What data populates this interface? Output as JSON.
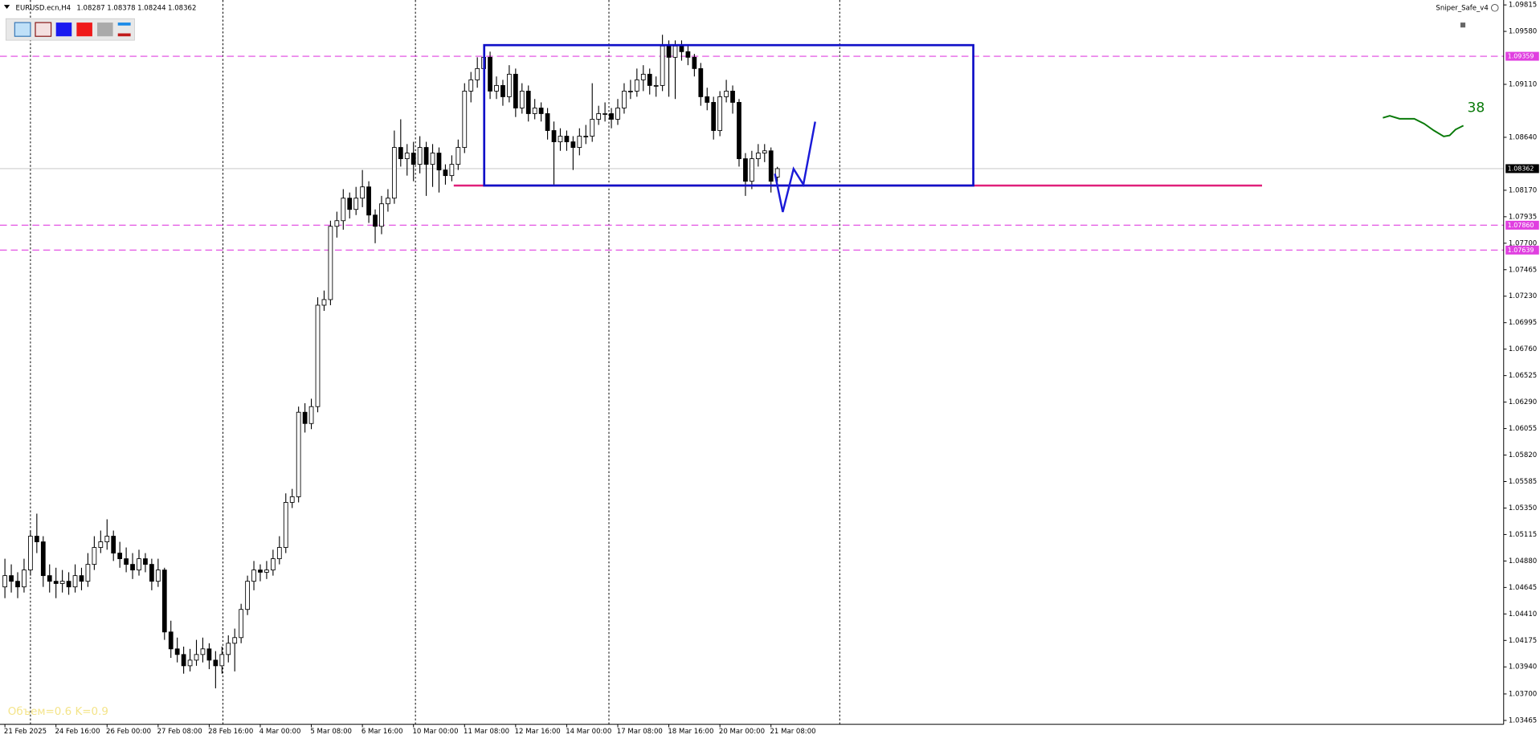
{
  "chart_data": {
    "type": "candlestick",
    "title": "EURUSD.ecn,H4",
    "indicator_name": "Sniper_Safe_v4",
    "indicator_value": 38,
    "annotation": "Объем=0.6 K=0.9",
    "ylim": [
      1.03465,
      1.09815
    ],
    "yticks": [
      1.09815,
      {
        "value": 1.0958,
        "label": "1.09580"
      },
      {
        "value": 1.0911,
        "label": "1.09110"
      },
      {
        "value": 1.0864,
        "label": "1.08640"
      },
      {
        "value": 1.0817,
        "label": "1.08170"
      },
      1.07935,
      {
        "value": 1.077,
        "label": "1.07700"
      },
      1.07465,
      {
        "value": 1.0723,
        "label": "1.07230"
      },
      1.06995,
      {
        "value": 1.0676,
        "label": "1.06760"
      },
      1.06525,
      {
        "value": 1.0629,
        "label": "1.06290"
      },
      1.06055,
      {
        "value": 1.0582,
        "label": "1.05820"
      },
      1.05585,
      {
        "value": 1.0535,
        "label": "1.05350"
      },
      1.05115,
      {
        "value": 1.0488,
        "label": "1.04880"
      },
      1.04645,
      {
        "value": 1.0441,
        "label": "1.04410"
      },
      1.04175,
      {
        "value": 1.0394,
        "label": "1.03940"
      },
      {
        "value": 1.037,
        "label": "1.03700"
      },
      1.03465
    ],
    "xticks": [
      {
        "value": 0,
        "label": "21 Feb 2025"
      },
      {
        "value": 8,
        "label": "24 Feb 16:00"
      },
      {
        "value": 16,
        "label": "26 Feb 00:00"
      },
      {
        "value": 24,
        "label": "27 Feb 08:00"
      },
      {
        "value": 32,
        "label": "28 Feb 16:00"
      },
      {
        "value": 40,
        "label": "4 Mar 00:00"
      },
      {
        "value": 48,
        "label": "5 Mar 08:00"
      },
      {
        "value": 56,
        "label": "6 Mar 16:00"
      },
      {
        "value": 64,
        "label": "10 Mar 00:00"
      },
      {
        "value": 72,
        "label": "11 Mar 08:00"
      },
      {
        "value": 80,
        "label": "12 Mar 16:00"
      },
      {
        "value": 88,
        "label": "14 Mar 00:00"
      },
      {
        "value": 96,
        "label": "17 Mar 08:00"
      },
      {
        "value": 104,
        "label": "18 Mar 16:00"
      },
      {
        "value": 112,
        "label": "20 Mar 00:00"
      },
      {
        "value": 120,
        "label": "21 Mar 08:00"
      }
    ],
    "levels": [
      1.09359,
      {
        "value": 1.0786,
        "label": "1.07860"
      },
      1.07639
    ],
    "level_color": "#e040e0",
    "current_price": 1.08362,
    "zone": {
      "top": 1.09458,
      "bottom": 1.08212,
      "color": "#1010c8",
      "line_color": "#e0207a"
    },
    "ohlc": [
      [
        1.0465,
        1.049,
        1.0455,
        1.0475
      ],
      [
        1.0475,
        1.0485,
        1.046,
        1.047
      ],
      [
        1.047,
        1.0478,
        1.0455,
        1.0465
      ],
      [
        1.0465,
        1.049,
        1.046,
        1.048
      ],
      [
        1.048,
        1.0515,
        1.0475,
        1.051
      ],
      [
        1.051,
        1.053,
        1.0495,
        1.0505
      ],
      [
        1.0505,
        1.051,
        1.0465,
        1.0475
      ],
      [
        1.0475,
        1.0485,
        1.046,
        1.047
      ],
      [
        1.047,
        1.0482,
        1.0455,
        1.0468
      ],
      [
        1.0468,
        1.048,
        1.046,
        1.047
      ],
      [
        1.047,
        1.0478,
        1.0458,
        1.0465
      ],
      [
        1.0465,
        1.0485,
        1.046,
        1.0475
      ],
      [
        1.0475,
        1.0482,
        1.0462,
        1.047
      ],
      [
        1.047,
        1.0495,
        1.0465,
        1.0485
      ],
      [
        1.0485,
        1.051,
        1.048,
        1.05
      ],
      [
        1.05,
        1.0515,
        1.0495,
        1.0505
      ],
      [
        1.0505,
        1.0525,
        1.0498,
        1.051
      ],
      [
        1.051,
        1.0515,
        1.0488,
        1.0495
      ],
      [
        1.0495,
        1.0505,
        1.0482,
        1.049
      ],
      [
        1.049,
        1.05,
        1.0478,
        1.0485
      ],
      [
        1.0485,
        1.0495,
        1.0472,
        1.048
      ],
      [
        1.048,
        1.0498,
        1.0475,
        1.049
      ],
      [
        1.049,
        1.0495,
        1.0478,
        1.0485
      ],
      [
        1.0485,
        1.049,
        1.0462,
        1.047
      ],
      [
        1.047,
        1.049,
        1.0465,
        1.048
      ],
      [
        1.048,
        1.0482,
        1.0418,
        1.0425
      ],
      [
        1.0425,
        1.0435,
        1.0402,
        1.041
      ],
      [
        1.041,
        1.042,
        1.0398,
        1.0405
      ],
      [
        1.0405,
        1.0412,
        1.0388,
        1.0395
      ],
      [
        1.0395,
        1.041,
        1.039,
        1.04
      ],
      [
        1.04,
        1.0418,
        1.0395,
        1.0405
      ],
      [
        1.0405,
        1.042,
        1.0398,
        1.041
      ],
      [
        1.041,
        1.0415,
        1.0392,
        1.04
      ],
      [
        1.04,
        1.0408,
        1.0375,
        1.0395
      ],
      [
        1.0395,
        1.0412,
        1.0388,
        1.0405
      ],
      [
        1.0405,
        1.0422,
        1.0398,
        1.0415
      ],
      [
        1.0415,
        1.0428,
        1.039,
        1.042
      ],
      [
        1.042,
        1.045,
        1.0415,
        1.0445
      ],
      [
        1.0445,
        1.0475,
        1.044,
        1.047
      ],
      [
        1.047,
        1.0488,
        1.0462,
        1.048
      ],
      [
        1.048,
        1.0485,
        1.047,
        1.0478
      ],
      [
        1.0478,
        1.0488,
        1.0472,
        1.048
      ],
      [
        1.048,
        1.0498,
        1.0475,
        1.049
      ],
      [
        1.049,
        1.051,
        1.0485,
        1.05
      ],
      [
        1.05,
        1.0548,
        1.0495,
        1.054
      ],
      [
        1.054,
        1.0552,
        1.0535,
        1.0545
      ],
      [
        1.0545,
        1.0625,
        1.054,
        1.062
      ],
      [
        1.062,
        1.0628,
        1.0602,
        1.061
      ],
      [
        1.061,
        1.0632,
        1.0605,
        1.0625
      ],
      [
        1.0625,
        1.0722,
        1.062,
        1.0715
      ],
      [
        1.0715,
        1.0728,
        1.071,
        1.072
      ],
      [
        1.072,
        1.079,
        1.0715,
        1.0785
      ],
      [
        1.0785,
        1.0798,
        1.0775,
        1.079
      ],
      [
        1.079,
        1.0818,
        1.0782,
        1.081
      ],
      [
        1.081,
        1.0815,
        1.0792,
        1.08
      ],
      [
        1.08,
        1.082,
        1.0795,
        1.081
      ],
      [
        1.081,
        1.0835,
        1.0802,
        1.082
      ],
      [
        1.082,
        1.0825,
        1.0788,
        1.0795
      ],
      [
        1.0795,
        1.08,
        1.077,
        1.0785
      ],
      [
        1.0785,
        1.0812,
        1.0778,
        1.0805
      ],
      [
        1.0805,
        1.0818,
        1.0798,
        1.081
      ],
      [
        1.081,
        1.087,
        1.0805,
        1.0855
      ],
      [
        1.0855,
        1.088,
        1.0838,
        1.0845
      ],
      [
        1.0845,
        1.0858,
        1.083,
        1.085
      ],
      [
        1.085,
        1.086,
        1.0825,
        1.084
      ],
      [
        1.084,
        1.0865,
        1.0832,
        1.0855
      ],
      [
        1.0855,
        1.086,
        1.0812,
        1.084
      ],
      [
        1.084,
        1.0858,
        1.082,
        1.085
      ],
      [
        1.085,
        1.0855,
        1.0815,
        1.0835
      ],
      [
        1.0835,
        1.084,
        1.0822,
        1.083
      ],
      [
        1.083,
        1.0848,
        1.0825,
        1.084
      ],
      [
        1.084,
        1.0862,
        1.0835,
        1.0855
      ],
      [
        1.0855,
        1.0912,
        1.085,
        1.0905
      ],
      [
        1.0905,
        1.0922,
        1.0895,
        1.0915
      ],
      [
        1.0915,
        1.0935,
        1.0908,
        1.0925
      ],
      [
        1.0925,
        1.0945,
        1.0918,
        1.0935
      ],
      [
        1.0935,
        1.094,
        1.0898,
        1.0905
      ],
      [
        1.0905,
        1.0918,
        1.0898,
        1.091
      ],
      [
        1.091,
        1.0915,
        1.0892,
        1.09
      ],
      [
        1.09,
        1.0928,
        1.0895,
        1.092
      ],
      [
        1.092,
        1.0925,
        1.0882,
        1.089
      ],
      [
        1.089,
        1.0912,
        1.0885,
        1.0905
      ],
      [
        1.0905,
        1.091,
        1.0878,
        1.0885
      ],
      [
        1.0885,
        1.0898,
        1.088,
        1.089
      ],
      [
        1.089,
        1.0895,
        1.0878,
        1.0885
      ],
      [
        1.0885,
        1.089,
        1.0862,
        1.087
      ],
      [
        1.087,
        1.0878,
        1.0822,
        1.086
      ],
      [
        1.086,
        1.0872,
        1.0852,
        1.0865
      ],
      [
        1.0865,
        1.087,
        1.0852,
        1.086
      ],
      [
        1.086,
        1.0865,
        1.0835,
        1.0855
      ],
      [
        1.0855,
        1.0872,
        1.0848,
        1.0865
      ],
      [
        1.0865,
        1.0875,
        1.0858,
        1.0865
      ],
      [
        1.0865,
        1.0912,
        1.086,
        1.088
      ],
      [
        1.088,
        1.0892,
        1.0875,
        1.0885
      ],
      [
        1.0885,
        1.0895,
        1.0878,
        1.0885
      ],
      [
        1.0885,
        1.089,
        1.0872,
        1.088
      ],
      [
        1.088,
        1.0898,
        1.0875,
        1.089
      ],
      [
        1.089,
        1.0912,
        1.0885,
        1.0905
      ],
      [
        1.0905,
        1.0915,
        1.0898,
        1.0905
      ],
      [
        1.0905,
        1.0925,
        1.09,
        1.0915
      ],
      [
        1.0915,
        1.0928,
        1.0905,
        1.092
      ],
      [
        1.092,
        1.0925,
        1.0902,
        1.091
      ],
      [
        1.091,
        1.0918,
        1.09,
        1.091
      ],
      [
        1.091,
        1.0955,
        1.0905,
        1.0945
      ],
      [
        1.0945,
        1.095,
        1.09,
        1.0935
      ],
      [
        1.0935,
        1.095,
        1.0898,
        1.0945
      ],
      [
        1.0945,
        1.095,
        1.0932,
        1.094
      ],
      [
        1.094,
        1.0945,
        1.0928,
        1.0935
      ],
      [
        1.0935,
        1.0938,
        1.0918,
        1.0925
      ],
      [
        1.0925,
        1.093,
        1.0892,
        1.09
      ],
      [
        1.09,
        1.0908,
        1.0888,
        1.0895
      ],
      [
        1.0895,
        1.09,
        1.0862,
        1.087
      ],
      [
        1.087,
        1.0905,
        1.0865,
        1.09
      ],
      [
        1.09,
        1.0915,
        1.0895,
        1.0905
      ],
      [
        1.0905,
        1.091,
        1.0885,
        1.0895
      ],
      [
        1.0895,
        1.0898,
        1.0838,
        1.0845
      ],
      [
        1.0845,
        1.085,
        1.0812,
        1.0825
      ],
      [
        1.0825,
        1.0852,
        1.0818,
        1.0845
      ],
      [
        1.0845,
        1.0858,
        1.0838,
        1.085
      ],
      [
        1.085,
        1.0858,
        1.0842,
        1.0852
      ],
      [
        1.0852,
        1.0855,
        1.0815,
        1.0825
      ],
      [
        1.08287,
        1.08378,
        1.08244,
        1.08362
      ]
    ]
  }
}
